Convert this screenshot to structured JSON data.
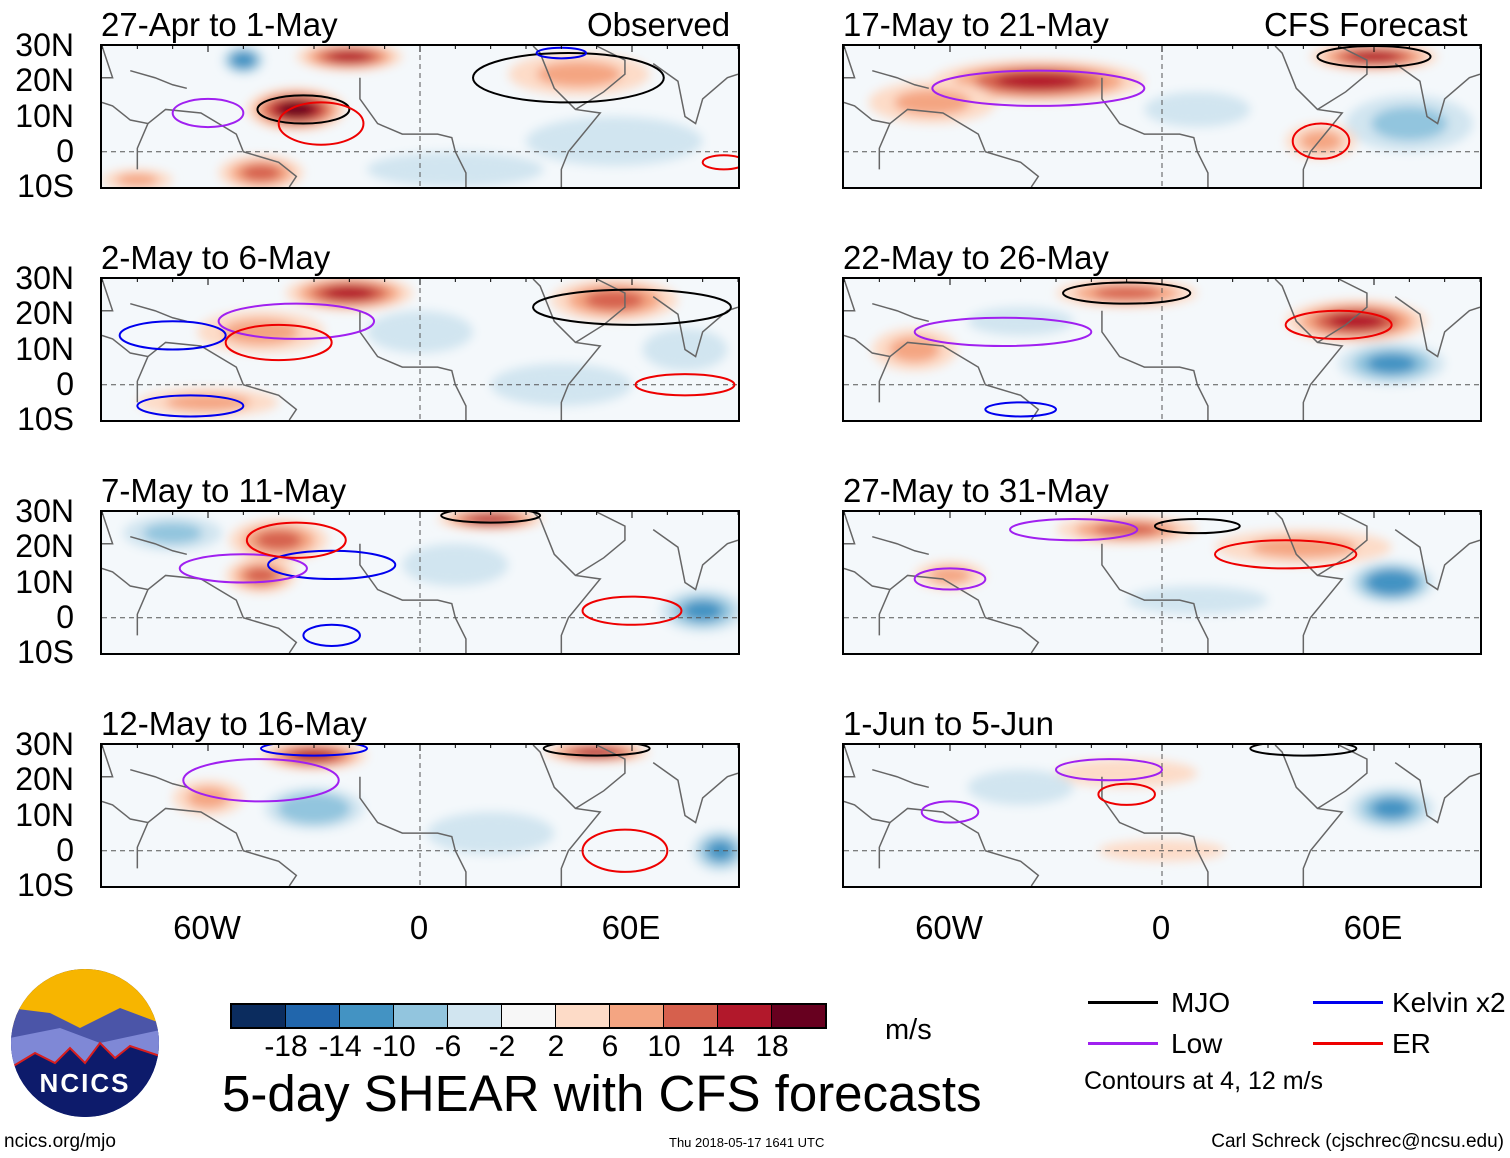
{
  "header": {
    "observed_label": "Observed",
    "forecast_label": "CFS Forecast"
  },
  "lat_labels": [
    "30N",
    "20N",
    "10N",
    "0",
    "10S"
  ],
  "lon_labels": [
    "60W",
    "0",
    "60E"
  ],
  "chart_data": {
    "type": "heatmap",
    "title": "5-day SHEAR with CFS forecasts",
    "units": "m/s",
    "lon_range": [
      -90,
      90
    ],
    "lat_range": [
      -10,
      30
    ],
    "colorbar": {
      "ticks": [
        "-18",
        "-14",
        "-10",
        "-6",
        "-2",
        "2",
        "6",
        "10",
        "14",
        "18"
      ],
      "colors": [
        "#0b2c5e",
        "#2166ac",
        "#4393c3",
        "#92c5de",
        "#d1e5f0",
        "#f7f7f7",
        "#fddbc7",
        "#f4a582",
        "#d6604d",
        "#b2182b",
        "#67001f"
      ]
    },
    "legend": {
      "items": [
        {
          "label": "MJO",
          "color": "#000000"
        },
        {
          "label": "Kelvin x2",
          "color": "#0000ee"
        },
        {
          "label": "Low",
          "color": "#a020f0"
        },
        {
          "label": "ER",
          "color": "#ee0000"
        }
      ],
      "note": "Contours at 4, 12 m/s"
    },
    "panels": [
      {
        "title": "27-Apr to 1-May",
        "group": "observed",
        "field": [
          {
            "lon": -35,
            "lat": 12,
            "rx": 14,
            "ry": 6,
            "v": 18
          },
          {
            "lon": -20,
            "lat": 27,
            "rx": 15,
            "ry": 4,
            "v": 14
          },
          {
            "lon": -50,
            "lat": 26,
            "rx": 6,
            "ry": 4,
            "v": -14
          },
          {
            "lon": 45,
            "lat": 22,
            "rx": 20,
            "ry": 6,
            "v": 8
          },
          {
            "lon": 55,
            "lat": 3,
            "rx": 25,
            "ry": 7,
            "v": -6
          },
          {
            "lon": -45,
            "lat": -6,
            "rx": 12,
            "ry": 5,
            "v": 12
          },
          {
            "lon": -80,
            "lat": -8,
            "rx": 10,
            "ry": 3,
            "v": 6
          },
          {
            "lon": 10,
            "lat": -5,
            "rx": 25,
            "ry": 5,
            "v": -4
          }
        ],
        "contours": [
          {
            "type": "MJO",
            "lon": -33,
            "lat": 12,
            "rx": 13,
            "ry": 4
          },
          {
            "type": "MJO",
            "lon": 42,
            "lat": 21,
            "rx": 27,
            "ry": 7
          },
          {
            "type": "ER",
            "lon": -28,
            "lat": 8,
            "rx": 12,
            "ry": 6
          },
          {
            "type": "Low",
            "lon": -60,
            "lat": 11,
            "rx": 10,
            "ry": 4
          },
          {
            "type": "ER",
            "lon": 86,
            "lat": -3,
            "rx": 6,
            "ry": 2
          },
          {
            "type": "Kelvin x2",
            "lon": 40,
            "lat": 28,
            "rx": 7,
            "ry": 1.5
          }
        ]
      },
      {
        "title": "2-May to 6-May",
        "group": "observed",
        "field": [
          {
            "lon": -20,
            "lat": 26,
            "rx": 18,
            "ry": 5,
            "v": 16
          },
          {
            "lon": -45,
            "lat": 15,
            "rx": 18,
            "ry": 6,
            "v": 8
          },
          {
            "lon": 55,
            "lat": 24,
            "rx": 18,
            "ry": 6,
            "v": 10
          },
          {
            "lon": 0,
            "lat": 15,
            "rx": 15,
            "ry": 6,
            "v": -6
          },
          {
            "lon": -60,
            "lat": -5,
            "rx": 20,
            "ry": 4,
            "v": 8
          },
          {
            "lon": 40,
            "lat": 0,
            "rx": 20,
            "ry": 6,
            "v": -6
          },
          {
            "lon": 75,
            "lat": 10,
            "rx": 12,
            "ry": 6,
            "v": -6
          }
        ],
        "contours": [
          {
            "type": "Low",
            "lon": -35,
            "lat": 18,
            "rx": 22,
            "ry": 5
          },
          {
            "type": "ER",
            "lon": -40,
            "lat": 12,
            "rx": 15,
            "ry": 5
          },
          {
            "type": "Kelvin x2",
            "lon": -70,
            "lat": 14,
            "rx": 15,
            "ry": 4
          },
          {
            "type": "MJO",
            "lon": 60,
            "lat": 22,
            "rx": 28,
            "ry": 5
          },
          {
            "type": "ER",
            "lon": 75,
            "lat": 0,
            "rx": 14,
            "ry": 3
          },
          {
            "type": "Kelvin x2",
            "lon": -65,
            "lat": -6,
            "rx": 15,
            "ry": 3
          }
        ]
      },
      {
        "title": "7-May to 11-May",
        "group": "observed",
        "field": [
          {
            "lon": -40,
            "lat": 22,
            "rx": 14,
            "ry": 6,
            "v": 12
          },
          {
            "lon": -45,
            "lat": 12,
            "rx": 10,
            "ry": 5,
            "v": 10
          },
          {
            "lon": -70,
            "lat": 24,
            "rx": 14,
            "ry": 5,
            "v": -8
          },
          {
            "lon": 20,
            "lat": 28,
            "rx": 15,
            "ry": 3,
            "v": 14
          },
          {
            "lon": 80,
            "lat": 2,
            "rx": 12,
            "ry": 6,
            "v": -12
          },
          {
            "lon": 10,
            "lat": 15,
            "rx": 15,
            "ry": 6,
            "v": -6
          }
        ],
        "contours": [
          {
            "type": "Kelvin x2",
            "lon": -25,
            "lat": 15,
            "rx": 18,
            "ry": 4
          },
          {
            "type": "Low",
            "lon": -50,
            "lat": 14,
            "rx": 18,
            "ry": 4
          },
          {
            "type": "ER",
            "lon": -35,
            "lat": 22,
            "rx": 14,
            "ry": 5
          },
          {
            "type": "ER",
            "lon": 60,
            "lat": 2,
            "rx": 14,
            "ry": 4
          },
          {
            "type": "Kelvin x2",
            "lon": -25,
            "lat": -5,
            "rx": 8,
            "ry": 3
          },
          {
            "type": "MJO",
            "lon": 20,
            "lat": 29,
            "rx": 14,
            "ry": 2
          }
        ]
      },
      {
        "title": "12-May to 16-May",
        "group": "observed",
        "field": [
          {
            "lon": -30,
            "lat": 27,
            "rx": 15,
            "ry": 4,
            "v": 16
          },
          {
            "lon": 50,
            "lat": 28,
            "rx": 15,
            "ry": 3,
            "v": 14
          },
          {
            "lon": -30,
            "lat": 12,
            "rx": 14,
            "ry": 6,
            "v": -10
          },
          {
            "lon": 20,
            "lat": 5,
            "rx": 18,
            "ry": 6,
            "v": -6
          },
          {
            "lon": 85,
            "lat": 0,
            "rx": 8,
            "ry": 6,
            "v": -12
          },
          {
            "lon": -60,
            "lat": 15,
            "rx": 10,
            "ry": 5,
            "v": 6
          }
        ],
        "contours": [
          {
            "type": "Low",
            "lon": -45,
            "lat": 20,
            "rx": 22,
            "ry": 6
          },
          {
            "type": "ER",
            "lon": 58,
            "lat": 0,
            "rx": 12,
            "ry": 6
          },
          {
            "type": "MJO",
            "lon": 50,
            "lat": 29,
            "rx": 15,
            "ry": 2
          },
          {
            "type": "Kelvin x2",
            "lon": -30,
            "lat": 29,
            "rx": 15,
            "ry": 2
          }
        ]
      },
      {
        "title": "17-May to 21-May",
        "group": "forecast",
        "field": [
          {
            "lon": -35,
            "lat": 20,
            "rx": 30,
            "ry": 6,
            "v": 14
          },
          {
            "lon": -65,
            "lat": 14,
            "rx": 18,
            "ry": 6,
            "v": 8
          },
          {
            "lon": 60,
            "lat": 27,
            "rx": 18,
            "ry": 4,
            "v": 14
          },
          {
            "lon": 70,
            "lat": 8,
            "rx": 18,
            "ry": 8,
            "v": -8
          },
          {
            "lon": 10,
            "lat": 12,
            "rx": 15,
            "ry": 5,
            "v": -4
          },
          {
            "lon": 45,
            "lat": 3,
            "rx": 10,
            "ry": 5,
            "v": 6
          }
        ],
        "contours": [
          {
            "type": "Low",
            "lon": -35,
            "lat": 18,
            "rx": 30,
            "ry": 5
          },
          {
            "type": "ER",
            "lon": 45,
            "lat": 3,
            "rx": 8,
            "ry": 5
          },
          {
            "type": "MJO",
            "lon": 60,
            "lat": 27,
            "rx": 16,
            "ry": 3
          }
        ]
      },
      {
        "title": "22-May to 26-May",
        "group": "forecast",
        "field": [
          {
            "lon": -10,
            "lat": 26,
            "rx": 20,
            "ry": 4,
            "v": 12
          },
          {
            "lon": 55,
            "lat": 18,
            "rx": 20,
            "ry": 6,
            "v": 14
          },
          {
            "lon": 65,
            "lat": 6,
            "rx": 15,
            "ry": 6,
            "v": -12
          },
          {
            "lon": -40,
            "lat": 18,
            "rx": 15,
            "ry": 4,
            "v": -6
          },
          {
            "lon": -70,
            "lat": 10,
            "rx": 12,
            "ry": 6,
            "v": 6
          }
        ],
        "contours": [
          {
            "type": "MJO",
            "lon": -10,
            "lat": 26,
            "rx": 18,
            "ry": 3
          },
          {
            "type": "Low",
            "lon": -45,
            "lat": 15,
            "rx": 25,
            "ry": 4
          },
          {
            "type": "ER",
            "lon": 50,
            "lat": 17,
            "rx": 15,
            "ry": 4
          },
          {
            "type": "Kelvin x2",
            "lon": -40,
            "lat": -7,
            "rx": 10,
            "ry": 2
          }
        ]
      },
      {
        "title": "27-May to 31-May",
        "group": "forecast",
        "field": [
          {
            "lon": -10,
            "lat": 25,
            "rx": 20,
            "ry": 4,
            "v": 10
          },
          {
            "lon": 40,
            "lat": 20,
            "rx": 25,
            "ry": 5,
            "v": 8
          },
          {
            "lon": 65,
            "lat": 10,
            "rx": 12,
            "ry": 6,
            "v": -14
          },
          {
            "lon": -60,
            "lat": 12,
            "rx": 10,
            "ry": 4,
            "v": 6
          },
          {
            "lon": 10,
            "lat": 5,
            "rx": 20,
            "ry": 4,
            "v": -4
          }
        ],
        "contours": [
          {
            "type": "Low",
            "lon": -25,
            "lat": 25,
            "rx": 18,
            "ry": 3
          },
          {
            "type": "MJO",
            "lon": 10,
            "lat": 26,
            "rx": 12,
            "ry": 2
          },
          {
            "type": "ER",
            "lon": 35,
            "lat": 18,
            "rx": 20,
            "ry": 4
          },
          {
            "type": "Low",
            "lon": -60,
            "lat": 11,
            "rx": 10,
            "ry": 3
          }
        ]
      },
      {
        "title": "1-Jun to 5-Jun",
        "group": "forecast",
        "field": [
          {
            "lon": 65,
            "lat": 12,
            "rx": 12,
            "ry": 6,
            "v": -12
          },
          {
            "lon": -10,
            "lat": 22,
            "rx": 20,
            "ry": 4,
            "v": 4
          },
          {
            "lon": 0,
            "lat": 0,
            "rx": 18,
            "ry": 3,
            "v": 4
          },
          {
            "lon": -40,
            "lat": 18,
            "rx": 15,
            "ry": 5,
            "v": -4
          }
        ],
        "contours": [
          {
            "type": "Low",
            "lon": -15,
            "lat": 23,
            "rx": 15,
            "ry": 3
          },
          {
            "type": "ER",
            "lon": -10,
            "lat": 16,
            "rx": 8,
            "ry": 3
          },
          {
            "type": "Low",
            "lon": -60,
            "lat": 11,
            "rx": 8,
            "ry": 3
          },
          {
            "type": "MJO",
            "lon": 40,
            "lat": 29,
            "rx": 15,
            "ry": 2
          }
        ]
      }
    ]
  },
  "logo": {
    "text": "NCICS"
  },
  "footer": {
    "left": "ncics.org/mjo",
    "center": "Thu 2018-05-17 1641 UTC",
    "right": "Carl Schreck (cjschrec@ncsu.edu)"
  }
}
